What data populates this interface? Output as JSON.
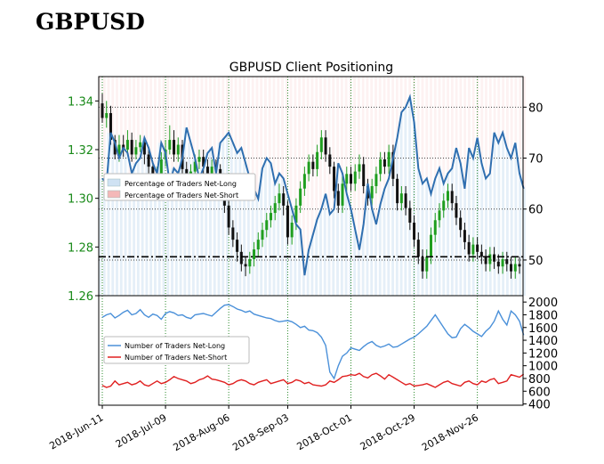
{
  "page": {
    "title": "GBPUSD"
  },
  "chart_data": [
    {
      "type": "line",
      "title": "GBPUSD Client Positioning",
      "x_ticks": [
        "2018-Jun-11",
        "2018-Jul-09",
        "2018-Aug-06",
        "2018-Sep-03",
        "2018-Oct-01",
        "2018-Oct-29",
        "2018-Nov-26"
      ],
      "left_axis": {
        "ylim": [
          1.26,
          1.35
        ],
        "ticks": [
          "1.26",
          "1.28",
          "1.30",
          "1.32",
          "1.34"
        ],
        "color": "#1a8a1a"
      },
      "right_axis": {
        "ylim": [
          43,
          86
        ],
        "ticks": [
          "50",
          "60",
          "70",
          "80"
        ]
      },
      "reference_line": {
        "value": 1.276,
        "style": "dash-dot"
      },
      "legend": {
        "position": "center-left",
        "entries": [
          {
            "label": "Percentage of Traders Net-Long",
            "color": "#cfe2f3"
          },
          {
            "label": "Percentage of Traders Net-Short",
            "color": "#f4b8b8"
          }
        ]
      },
      "candles": [
        [
          1.339,
          1.333,
          1.343,
          1.331
        ],
        [
          1.333,
          1.335,
          1.34,
          1.329
        ],
        [
          1.335,
          1.324,
          1.338,
          1.322
        ],
        [
          1.324,
          1.318,
          1.326,
          1.316
        ],
        [
          1.318,
          1.322,
          1.326,
          1.315
        ],
        [
          1.322,
          1.32,
          1.326,
          1.317
        ],
        [
          1.32,
          1.324,
          1.328,
          1.318
        ],
        [
          1.324,
          1.318,
          1.327,
          1.315
        ],
        [
          1.318,
          1.321,
          1.324,
          1.316
        ],
        [
          1.321,
          1.323,
          1.326,
          1.319
        ],
        [
          1.323,
          1.318,
          1.325,
          1.314
        ],
        [
          1.318,
          1.313,
          1.32,
          1.31
        ],
        [
          1.313,
          1.306,
          1.315,
          1.303
        ],
        [
          1.306,
          1.31,
          1.313,
          1.303
        ],
        [
          1.31,
          1.316,
          1.319,
          1.308
        ],
        [
          1.316,
          1.32,
          1.324,
          1.313
        ],
        [
          1.32,
          1.324,
          1.33,
          1.318
        ],
        [
          1.324,
          1.318,
          1.328,
          1.315
        ],
        [
          1.318,
          1.322,
          1.325,
          1.315
        ],
        [
          1.322,
          1.312,
          1.324,
          1.309
        ],
        [
          1.312,
          1.307,
          1.315,
          1.304
        ],
        [
          1.307,
          1.311,
          1.314,
          1.305
        ],
        [
          1.311,
          1.315,
          1.318,
          1.308
        ],
        [
          1.315,
          1.317,
          1.32,
          1.312
        ],
        [
          1.317,
          1.313,
          1.32,
          1.31
        ],
        [
          1.313,
          1.31,
          1.316,
          1.307
        ],
        [
          1.31,
          1.313,
          1.316,
          1.307
        ],
        [
          1.313,
          1.312,
          1.316,
          1.308
        ],
        [
          1.312,
          1.304,
          1.314,
          1.3
        ],
        [
          1.304,
          1.297,
          1.306,
          1.294
        ],
        [
          1.297,
          1.288,
          1.299,
          1.285
        ],
        [
          1.288,
          1.283,
          1.291,
          1.28
        ],
        [
          1.283,
          1.278,
          1.286,
          1.274
        ],
        [
          1.278,
          1.273,
          1.281,
          1.27
        ],
        [
          1.273,
          1.272,
          1.276,
          1.268
        ],
        [
          1.272,
          1.275,
          1.278,
          1.269
        ],
        [
          1.275,
          1.279,
          1.282,
          1.272
        ],
        [
          1.279,
          1.283,
          1.286,
          1.276
        ],
        [
          1.283,
          1.287,
          1.29,
          1.28
        ],
        [
          1.287,
          1.291,
          1.294,
          1.284
        ],
        [
          1.291,
          1.294,
          1.297,
          1.288
        ],
        [
          1.294,
          1.298,
          1.301,
          1.291
        ],
        [
          1.298,
          1.302,
          1.306,
          1.295
        ],
        [
          1.302,
          1.297,
          1.305,
          1.293
        ],
        [
          1.297,
          1.284,
          1.299,
          1.281
        ],
        [
          1.284,
          1.29,
          1.293,
          1.281
        ],
        [
          1.29,
          1.297,
          1.3,
          1.287
        ],
        [
          1.297,
          1.304,
          1.307,
          1.294
        ],
        [
          1.304,
          1.31,
          1.313,
          1.301
        ],
        [
          1.31,
          1.315,
          1.318,
          1.307
        ],
        [
          1.315,
          1.312,
          1.318,
          1.309
        ],
        [
          1.312,
          1.319,
          1.322,
          1.309
        ],
        [
          1.319,
          1.325,
          1.328,
          1.316
        ],
        [
          1.325,
          1.318,
          1.328,
          1.315
        ],
        [
          1.318,
          1.313,
          1.321,
          1.31
        ],
        [
          1.313,
          1.303,
          1.315,
          1.3
        ],
        [
          1.303,
          1.297,
          1.306,
          1.294
        ],
        [
          1.297,
          1.306,
          1.309,
          1.294
        ],
        [
          1.306,
          1.31,
          1.313,
          1.303
        ],
        [
          1.31,
          1.306,
          1.313,
          1.303
        ],
        [
          1.306,
          1.311,
          1.314,
          1.303
        ],
        [
          1.311,
          1.314,
          1.318,
          1.308
        ],
        [
          1.314,
          1.305,
          1.317,
          1.302
        ],
        [
          1.305,
          1.3,
          1.308,
          1.297
        ],
        [
          1.3,
          1.305,
          1.308,
          1.297
        ],
        [
          1.305,
          1.31,
          1.313,
          1.302
        ],
        [
          1.31,
          1.316,
          1.319,
          1.307
        ],
        [
          1.316,
          1.313,
          1.319,
          1.31
        ],
        [
          1.313,
          1.319,
          1.322,
          1.31
        ],
        [
          1.319,
          1.308,
          1.322,
          1.305
        ],
        [
          1.308,
          1.298,
          1.31,
          1.295
        ],
        [
          1.298,
          1.302,
          1.305,
          1.295
        ],
        [
          1.302,
          1.296,
          1.305,
          1.293
        ],
        [
          1.296,
          1.29,
          1.299,
          1.287
        ],
        [
          1.29,
          1.283,
          1.293,
          1.28
        ],
        [
          1.283,
          1.276,
          1.286,
          1.273
        ],
        [
          1.276,
          1.27,
          1.279,
          1.267
        ],
        [
          1.27,
          1.276,
          1.279,
          1.267
        ],
        [
          1.276,
          1.285,
          1.288,
          1.273
        ],
        [
          1.285,
          1.291,
          1.294,
          1.282
        ],
        [
          1.291,
          1.295,
          1.298,
          1.288
        ],
        [
          1.295,
          1.299,
          1.302,
          1.292
        ],
        [
          1.299,
          1.303,
          1.306,
          1.296
        ],
        [
          1.303,
          1.298,
          1.306,
          1.295
        ],
        [
          1.298,
          1.292,
          1.301,
          1.289
        ],
        [
          1.292,
          1.287,
          1.295,
          1.284
        ],
        [
          1.287,
          1.282,
          1.29,
          1.279
        ],
        [
          1.282,
          1.277,
          1.285,
          1.274
        ],
        [
          1.277,
          1.281,
          1.284,
          1.274
        ],
        [
          1.281,
          1.278,
          1.284,
          1.275
        ],
        [
          1.278,
          1.276,
          1.281,
          1.273
        ],
        [
          1.276,
          1.273,
          1.279,
          1.27
        ],
        [
          1.273,
          1.277,
          1.28,
          1.27
        ],
        [
          1.277,
          1.274,
          1.28,
          1.271
        ],
        [
          1.274,
          1.272,
          1.277,
          1.269
        ],
        [
          1.272,
          1.275,
          1.278,
          1.269
        ],
        [
          1.275,
          1.273,
          1.278,
          1.27
        ],
        [
          1.273,
          1.27,
          1.276,
          1.267
        ],
        [
          1.27,
          1.273,
          1.276,
          1.267
        ],
        [
          1.273,
          1.272,
          1.276,
          1.269
        ]
      ],
      "pct_net_long": [
        66,
        65,
        75,
        73,
        70,
        72,
        71,
        67,
        69,
        70,
        74,
        72,
        69,
        67,
        73,
        71,
        65,
        68,
        67,
        70,
        76,
        73,
        70,
        66,
        68,
        71,
        72,
        67,
        73,
        74,
        75,
        73,
        71,
        72,
        69,
        66,
        64,
        62,
        68,
        70,
        69,
        65,
        67,
        66,
        63,
        60,
        57,
        56,
        47,
        52,
        55,
        58,
        60,
        63,
        59,
        60,
        69,
        67,
        63,
        60,
        56,
        52,
        57,
        65,
        60,
        57,
        61,
        64,
        66,
        70,
        74,
        79,
        80,
        82,
        77,
        68,
        65,
        66,
        63,
        66,
        68,
        65,
        67,
        68,
        72,
        69,
        64,
        72,
        70,
        74,
        69,
        66,
        67,
        75,
        73,
        75,
        72,
        70,
        73,
        67,
        64
      ]
    },
    {
      "type": "line",
      "right_axis": {
        "ylim": [
          380,
          2100
        ],
        "ticks": [
          "400",
          "600",
          "800",
          "1000",
          "1200",
          "1400",
          "1600",
          "1800",
          "2000"
        ]
      },
      "legend": {
        "position": "center-left",
        "entries": [
          {
            "label": "Number of Traders Net-Long",
            "color": "#4a90d9"
          },
          {
            "label": "Number of Traders Net-Short",
            "color": "#e02020"
          }
        ]
      },
      "series": [
        {
          "name": "Number of Traders Net-Long",
          "values": [
            1760,
            1800,
            1820,
            1750,
            1790,
            1840,
            1870,
            1800,
            1820,
            1880,
            1800,
            1760,
            1810,
            1790,
            1730,
            1820,
            1850,
            1830,
            1790,
            1800,
            1760,
            1740,
            1800,
            1810,
            1820,
            1800,
            1780,
            1840,
            1900,
            1950,
            1960,
            1930,
            1890,
            1870,
            1840,
            1860,
            1810,
            1790,
            1770,
            1750,
            1740,
            1710,
            1690,
            1700,
            1710,
            1690,
            1650,
            1600,
            1620,
            1560,
            1550,
            1520,
            1450,
            1320,
            900,
            800,
            1000,
            1150,
            1200,
            1280,
            1260,
            1240,
            1300,
            1350,
            1380,
            1320,
            1290,
            1310,
            1340,
            1290,
            1300,
            1340,
            1380,
            1420,
            1450,
            1500,
            1560,
            1620,
            1710,
            1800,
            1700,
            1600,
            1500,
            1440,
            1450,
            1580,
            1650,
            1600,
            1540,
            1500,
            1460,
            1540,
            1600,
            1700,
            1860,
            1730,
            1640,
            1860,
            1800,
            1700,
            1480
          ]
        },
        {
          "name": "Number of Traders Net-Short",
          "values": [
            690,
            660,
            680,
            760,
            700,
            720,
            740,
            700,
            720,
            760,
            700,
            680,
            720,
            760,
            720,
            740,
            780,
            830,
            800,
            780,
            760,
            720,
            740,
            780,
            800,
            840,
            790,
            780,
            760,
            740,
            700,
            720,
            760,
            780,
            760,
            720,
            700,
            740,
            760,
            780,
            720,
            740,
            760,
            780,
            720,
            740,
            780,
            760,
            720,
            740,
            700,
            690,
            680,
            700,
            760,
            740,
            780,
            830,
            840,
            860,
            850,
            880,
            830,
            810,
            860,
            880,
            840,
            790,
            860,
            820,
            780,
            740,
            700,
            720,
            680,
            690,
            700,
            720,
            690,
            660,
            700,
            740,
            760,
            720,
            700,
            680,
            740,
            760,
            720,
            700,
            760,
            740,
            780,
            800,
            720,
            740,
            760,
            860,
            840,
            820,
            870
          ]
        }
      ]
    }
  ]
}
